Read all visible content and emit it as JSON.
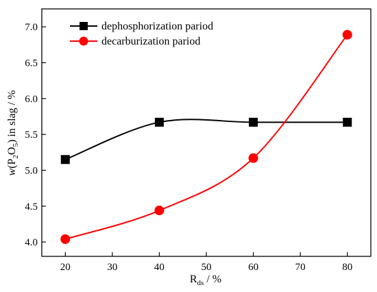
{
  "chart_data": {
    "type": "line",
    "x": [
      20,
      40,
      60,
      80
    ],
    "series": [
      {
        "name": "dephosphorization pariod",
        "values": [
          5.15,
          5.67,
          5.67,
          5.67
        ],
        "color": "#000000",
        "marker": "square"
      },
      {
        "name": "decarburization pariod",
        "values": [
          4.04,
          4.44,
          5.17,
          6.89
        ],
        "color": "#ff0000",
        "marker": "circle"
      }
    ],
    "xlabel": {
      "main": "R",
      "sub": "ds",
      "unit": " / %"
    },
    "ylabel": {
      "pre": "w",
      "paren_open": "(P",
      "sub1": "2",
      "mid": "O",
      "sub2": "5",
      "post": ") in slag / %"
    },
    "xlim": [
      15,
      85
    ],
    "ylim": [
      3.8,
      7.25
    ],
    "xticks": [
      20,
      30,
      40,
      50,
      60,
      70,
      80
    ],
    "yticks": [
      "4.0",
      "4.5",
      "5.0",
      "5.5",
      "6.0",
      "6.5",
      "7.0"
    ],
    "grid": false,
    "legend": "top-left"
  }
}
